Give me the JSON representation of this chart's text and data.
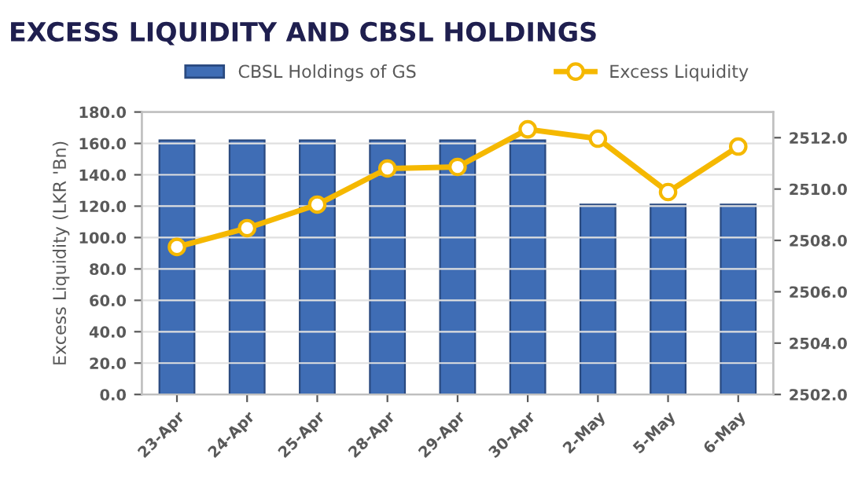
{
  "chart_data": {
    "type": "bar",
    "title": "EXCESS LIQUIDITY AND CBSL HOLDINGS",
    "ylabel": "Excess Liquidity (LKR 'Bn)",
    "categories": [
      "23-Apr",
      "24-Apr",
      "25-Apr",
      "28-Apr",
      "29-Apr",
      "30-Apr",
      "2-May",
      "5-May",
      "6-May"
    ],
    "series": [
      {
        "name": "CBSL Holdings of GS",
        "axis": "y2",
        "color": "#3f6db5",
        "values": [
          2511.9,
          2511.9,
          2511.9,
          2511.9,
          2511.9,
          2511.9,
          2509.4,
          2509.4,
          2509.4
        ]
      },
      {
        "name": "Excess Liquidity",
        "type": "line",
        "color": "#f5b800",
        "marker": "circle",
        "line_style": "solid",
        "values": [
          94,
          106,
          121,
          144,
          145,
          169,
          163,
          129,
          158
        ]
      }
    ],
    "ylim": [
      0,
      180
    ],
    "yticks": [
      {
        "value": 0,
        "label": "0.0"
      },
      {
        "value": 20,
        "label": "20.0"
      },
      {
        "value": 40,
        "label": "40.0"
      },
      {
        "value": 60,
        "label": "60.0"
      },
      {
        "value": 80,
        "label": "80.0"
      },
      {
        "value": 100,
        "label": "100.0"
      },
      {
        "value": 120,
        "label": "120.0"
      },
      {
        "value": 140,
        "label": "140.0"
      },
      {
        "value": 160,
        "label": "160.0"
      },
      {
        "value": 180,
        "label": "180.0"
      }
    ],
    "y2lim": [
      2502,
      2513
    ],
    "y2ticks": [
      {
        "value": 2502,
        "label": "2502.0"
      },
      {
        "value": 2504,
        "label": "2504.0"
      },
      {
        "value": 2506,
        "label": "2506.0"
      },
      {
        "value": 2508,
        "label": "2508.0"
      },
      {
        "value": 2510,
        "label": "2510.0"
      },
      {
        "value": 2512,
        "label": "2512.0"
      }
    ],
    "grid": "y",
    "legend": "top"
  }
}
